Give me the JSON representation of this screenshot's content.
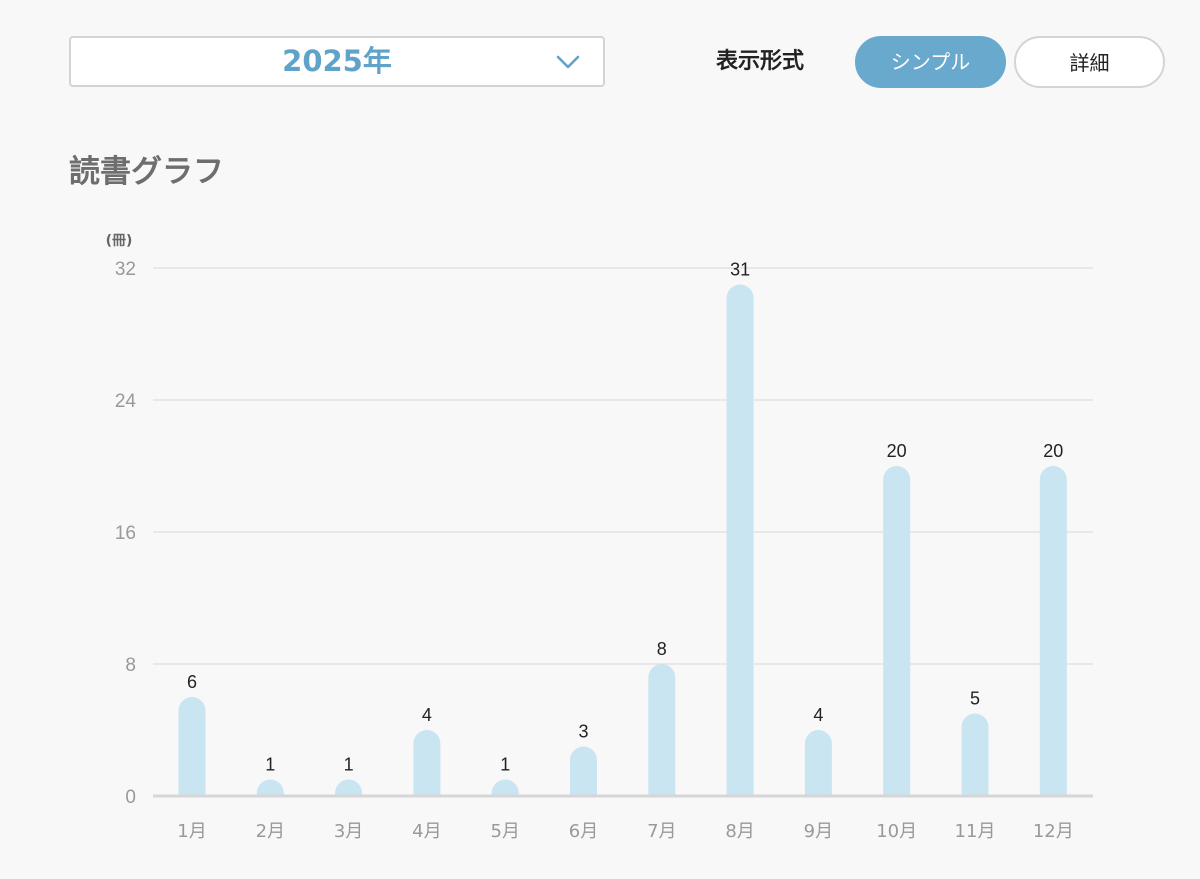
{
  "year_selector": {
    "value": "2025年",
    "icon": "chevron-down-icon",
    "accent_color": "#5fa3c8"
  },
  "display_mode": {
    "label": "表示形式",
    "options": [
      {
        "label": "シンプル",
        "selected": true
      },
      {
        "label": "詳細",
        "selected": false
      }
    ],
    "selected_color": "#68a9cd"
  },
  "section": {
    "title": "読書グラフ"
  },
  "chart_data": {
    "type": "bar",
    "unit": "(冊)",
    "categories": [
      "1月",
      "2月",
      "3月",
      "4月",
      "5月",
      "6月",
      "7月",
      "8月",
      "9月",
      "10月",
      "11月",
      "12月"
    ],
    "values": [
      6,
      1,
      1,
      4,
      1,
      3,
      8,
      31,
      4,
      20,
      5,
      20
    ],
    "ylim": [
      0,
      32
    ],
    "yticks": [
      0,
      8,
      16,
      24,
      32
    ],
    "grid": true,
    "bar_color": "#c9e5f2",
    "data_labels": true
  }
}
